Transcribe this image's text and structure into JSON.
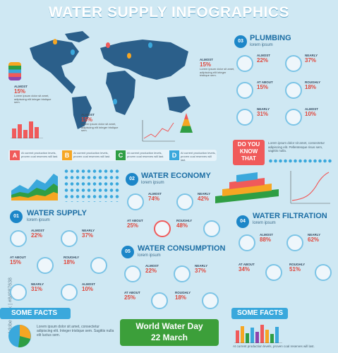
{
  "title": "WATER SUPPLY INFOGRAPHICS",
  "map_stats": {
    "left": {
      "label": "ALMOST",
      "pct": "15%",
      "desc": "Lorem ipsum dolor sit amet, adipiscing elit integer tristique sem."
    },
    "mid": {
      "label": "ALMOST",
      "pct": "15%",
      "desc": "Lorem ipsum dolor sit amet, adipiscing elit integer tristique sem."
    },
    "right": {
      "label": "ALMOST",
      "pct": "15%",
      "desc": "Lorem ipsum dolor sit amet, adipiscing elit integer tristique sem."
    }
  },
  "letters": [
    "A",
    "B",
    "C",
    "D"
  ],
  "letter_text": "At current production levels, proven coal reserves will last.",
  "plumbing": {
    "num": "03",
    "title": "PLUMBING",
    "sub": "lorem ipsum",
    "stats": [
      {
        "label": "ALMOST",
        "pct": "22%"
      },
      {
        "label": "NEARLY",
        "pct": "37%"
      },
      {
        "label": "AT ABOUT",
        "pct": "15%"
      },
      {
        "label": "ROUGHLY",
        "pct": "18%"
      },
      {
        "label": "NEARLY",
        "pct": "31%"
      },
      {
        "label": "ALMOST",
        "pct": "10%"
      }
    ]
  },
  "dyk": {
    "line1": "DO YOU",
    "line2": "KNOW",
    "line3": "THAT",
    "text": "Lorem ipsum dolor sit amet, consectetur adipiscing elit. Pellentesque risus sem, sagittis nulla."
  },
  "water_economy": {
    "num": "02",
    "title": "WATER ECONOMY",
    "sub": "lorem ipsum",
    "stats": [
      {
        "label": "ALMOST",
        "pct": "74%"
      },
      {
        "label": "NEARLY",
        "pct": "42%"
      },
      {
        "label": "AT ABOUT",
        "pct": "25%"
      },
      {
        "label": "ROUGHLY",
        "pct": "48%"
      }
    ]
  },
  "water_supply": {
    "num": "01",
    "title": "WATER SUPPLY",
    "sub": "lorem ipsum",
    "stats": [
      {
        "label": "ALMOST",
        "pct": "22%"
      },
      {
        "label": "NEARLY",
        "pct": "37%"
      },
      {
        "label": "AT ABOUT",
        "pct": "15%"
      },
      {
        "label": "ROUGHLY",
        "pct": "18%"
      },
      {
        "label": "NEARLY",
        "pct": "31%"
      },
      {
        "label": "ALMOST",
        "pct": "10%"
      }
    ]
  },
  "water_filtration": {
    "num": "04",
    "title": "WATER FILTRATION",
    "sub": "lorem ipsum",
    "stats": [
      {
        "label": "ALMOST",
        "pct": "88%"
      },
      {
        "label": "NEARLY",
        "pct": "62%"
      },
      {
        "label": "AT ABOUT",
        "pct": "34%"
      },
      {
        "label": "ROUGHLY",
        "pct": "51%"
      }
    ]
  },
  "water_consumption": {
    "num": "05",
    "title": "WATER CONSUMPTION",
    "sub": "lorem ipsum",
    "stats": [
      {
        "label": "ALMOST",
        "pct": "22%"
      },
      {
        "label": "NEARLY",
        "pct": "37%"
      },
      {
        "label": "AT ABOUT",
        "pct": "25%"
      },
      {
        "label": "ROUGHLY",
        "pct": "18%"
      }
    ]
  },
  "some_facts_left": {
    "title": "SOME FACTS",
    "text": "Lorem ipsum dolor sit amet, consectetur adipiscing elit. Integer tristique sem. Sagittis nulla elit luctus sem."
  },
  "some_facts_right": {
    "title": "SOME FACTS",
    "text": "At current production levels, proven coal reserves will last."
  },
  "world_water_day": {
    "line1": "World Water Day",
    "line2": "22 March"
  },
  "side_watermark": "Adobe Stock | #84087638",
  "colors": {
    "accent": "#1c86c8",
    "banner": "#3aa8dc",
    "green": "#2f9e44",
    "red": "#e0473c"
  }
}
